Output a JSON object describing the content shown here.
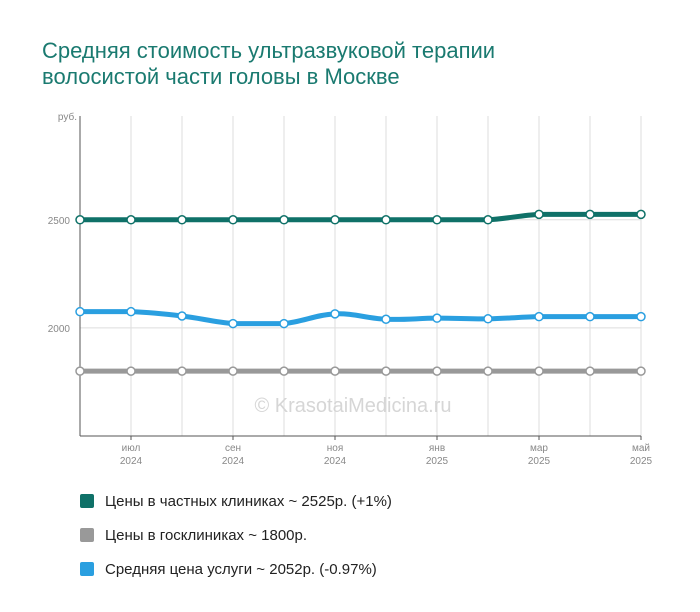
{
  "title_lines": [
    "Средняя стоимость ультразвуковой терапии",
    "волосистой части головы в Москве"
  ],
  "watermark": "© KrasotaiMedicina.ru",
  "colors": {
    "title": "#1a7a70",
    "private": "#0f7168",
    "public": "#999999",
    "average": "#2a9fe0",
    "grid": "#dddddd",
    "axis": "#555555",
    "tick": "#888888"
  },
  "legend": [
    {
      "key": "private",
      "label": "Цены в частных клиниках ~ 2525р. (+1%)"
    },
    {
      "key": "public",
      "label": "Цены в госклиниках ~ 1800р."
    },
    {
      "key": "average",
      "label": "Средняя цена услуги ~ 2052р. (-0.97%)"
    }
  ],
  "chart_data": {
    "type": "line",
    "y_unit": "руб.",
    "yticks": [
      2000,
      2500
    ],
    "ylim": [
      1500,
      2980
    ],
    "x": [
      "2024-06",
      "2024-07",
      "2024-08",
      "2024-09",
      "2024-10",
      "2024-11",
      "2024-12",
      "2025-01",
      "2025-02",
      "2025-03",
      "2025-04",
      "2025-05"
    ],
    "xtick_labels": [
      {
        "index": 1,
        "month": "июл",
        "year": "2024"
      },
      {
        "index": 3,
        "month": "сен",
        "year": "2024"
      },
      {
        "index": 5,
        "month": "ноя",
        "year": "2024"
      },
      {
        "index": 7,
        "month": "янв",
        "year": "2025"
      },
      {
        "index": 9,
        "month": "мар",
        "year": "2025"
      },
      {
        "index": 11,
        "month": "май",
        "year": "2025"
      }
    ],
    "grid": true,
    "series": [
      {
        "key": "private",
        "name": "Цены в частных клиниках",
        "values": [
          2500,
          2500,
          2500,
          2500,
          2500,
          2500,
          2500,
          2500,
          2500,
          2525,
          2525,
          2525
        ]
      },
      {
        "key": "public",
        "name": "Цены в госклиниках",
        "values": [
          1800,
          1800,
          1800,
          1800,
          1800,
          1800,
          1800,
          1800,
          1800,
          1800,
          1800,
          1800
        ]
      },
      {
        "key": "average",
        "name": "Средняя цена услуги",
        "values": [
          2075,
          2075,
          2055,
          2020,
          2020,
          2065,
          2040,
          2045,
          2042,
          2052,
          2052,
          2052
        ]
      }
    ]
  }
}
